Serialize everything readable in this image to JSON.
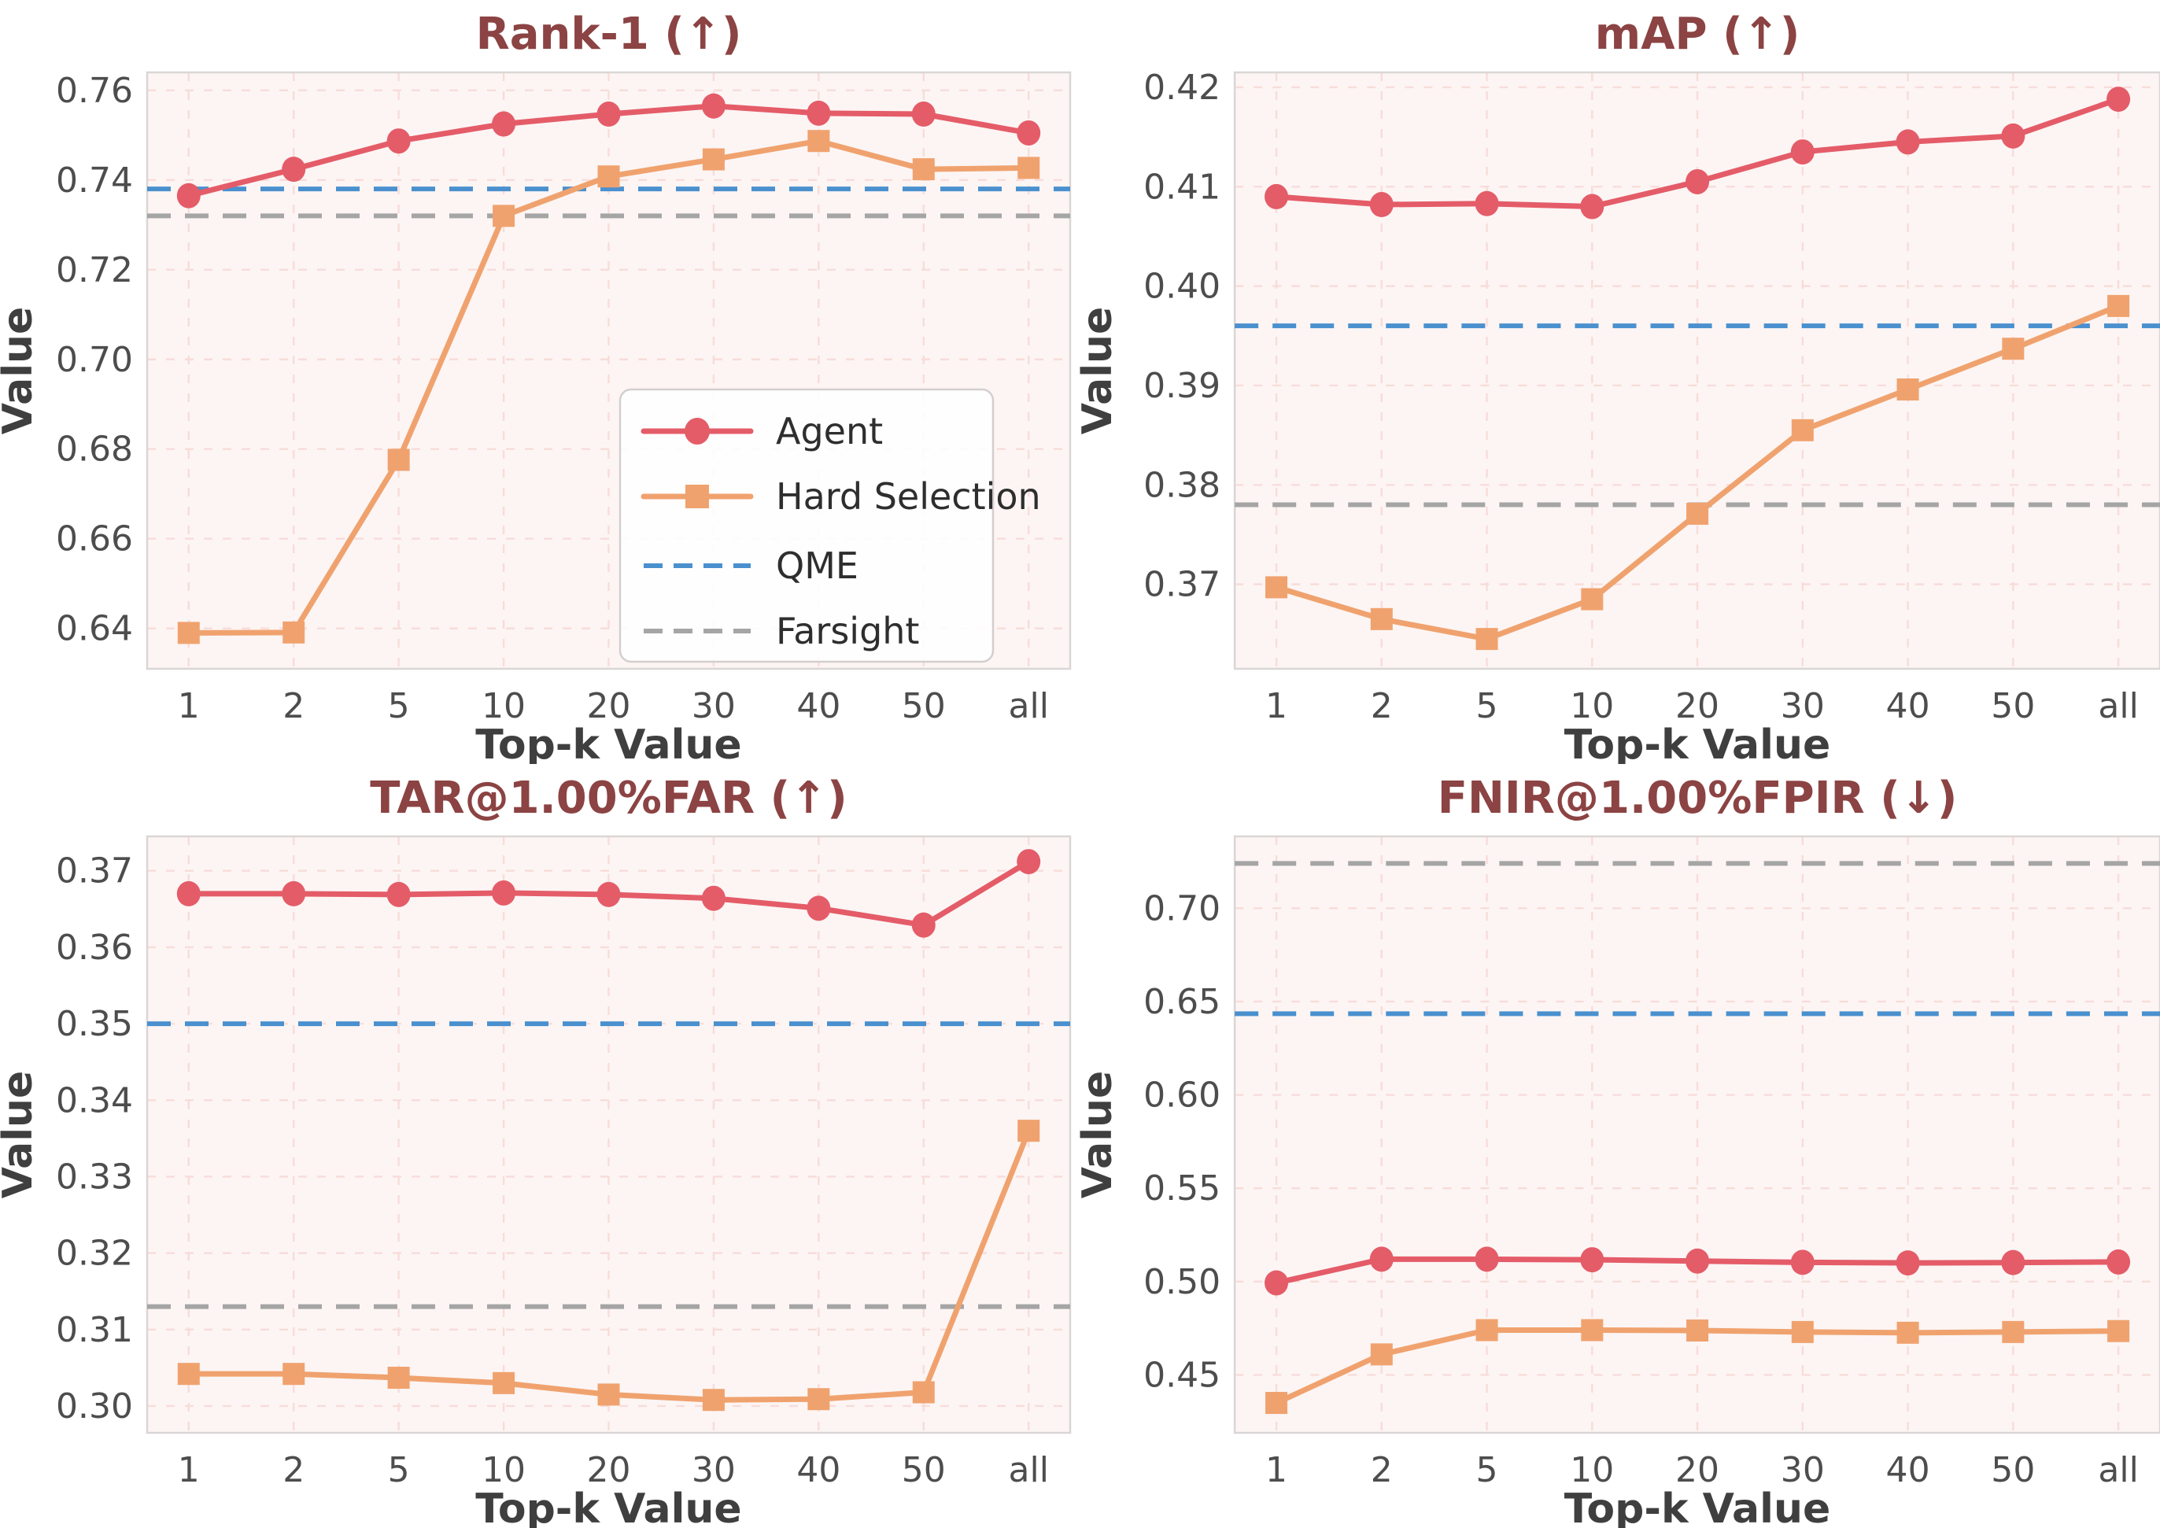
{
  "figure": {
    "xlabel": "Top-k Value",
    "ylabel": "Value",
    "categories": [
      "1",
      "2",
      "5",
      "10",
      "20",
      "30",
      "40",
      "50",
      "all"
    ],
    "legend": {
      "entries": [
        {
          "label": "Agent",
          "series": "agent",
          "swatch": "line-circle"
        },
        {
          "label": "Hard Selection",
          "series": "hard",
          "swatch": "line-square"
        },
        {
          "label": "QME",
          "series": "qme",
          "swatch": "dashed-line"
        },
        {
          "label": "Farsight",
          "series": "farsight",
          "swatch": "dashed-line"
        }
      ],
      "location": "inside-first-chart"
    },
    "colors": {
      "agent": "#E45C68",
      "hard": "#F0A26E",
      "qme": "#4A90CE",
      "farsight": "#A5A5A5",
      "title": "#8C4343",
      "tick_text": "#4D4D4D",
      "axis_label_text": "#3F3F3F",
      "legend_text": "#2E2E2E",
      "grid": "#F8DCD9",
      "plot_bg": "#FCF5F4",
      "spine": "#DBD6D6",
      "figure_bg": "#FFFFFF"
    }
  },
  "chart_data": [
    {
      "id": "rank1",
      "type": "line",
      "title": "Rank-1 (↑)",
      "better": "higher",
      "xlabel": "Top-k Value",
      "ylabel": "Value",
      "categories": [
        "1",
        "2",
        "5",
        "10",
        "20",
        "30",
        "40",
        "50",
        "all"
      ],
      "series": [
        {
          "name": "Agent",
          "key": "agent",
          "marker": "circle",
          "values": [
            0.7365,
            0.7424,
            0.7487,
            0.7525,
            0.7547,
            0.7565,
            0.7549,
            0.7547,
            0.7505
          ]
        },
        {
          "name": "Hard Selection",
          "key": "hard",
          "marker": "square",
          "values": [
            0.639,
            0.6391,
            0.6776,
            0.732,
            0.7408,
            0.7446,
            0.7487,
            0.7424,
            0.7427
          ]
        }
      ],
      "hlines": [
        {
          "name": "QME",
          "key": "qme",
          "value": 0.738
        },
        {
          "name": "Farsight",
          "key": "farsight",
          "value": 0.732
        }
      ],
      "yticks": [
        0.64,
        0.66,
        0.68,
        0.7,
        0.72,
        0.74,
        0.76
      ],
      "ytick_labels": [
        "0.64",
        "0.66",
        "0.68",
        "0.70",
        "0.72",
        "0.74",
        "0.76"
      ],
      "ylim": [
        0.631,
        0.764
      ],
      "grid": true,
      "legend_visible": true
    },
    {
      "id": "map",
      "type": "line",
      "title": "mAP (↑)",
      "better": "higher",
      "xlabel": "Top-k Value",
      "ylabel": "Value",
      "categories": [
        "1",
        "2",
        "5",
        "10",
        "20",
        "30",
        "40",
        "50",
        "all"
      ],
      "series": [
        {
          "name": "Agent",
          "key": "agent",
          "marker": "circle",
          "values": [
            0.409,
            0.4082,
            0.4083,
            0.408,
            0.4105,
            0.4135,
            0.4145,
            0.4151,
            0.4188
          ]
        },
        {
          "name": "Hard Selection",
          "key": "hard",
          "marker": "square",
          "values": [
            0.3697,
            0.3665,
            0.3645,
            0.3685,
            0.3771,
            0.3855,
            0.3896,
            0.3937,
            0.398
          ]
        }
      ],
      "hlines": [
        {
          "name": "QME",
          "key": "qme",
          "value": 0.396
        },
        {
          "name": "Farsight",
          "key": "farsight",
          "value": 0.378
        }
      ],
      "yticks": [
        0.37,
        0.38,
        0.39,
        0.4,
        0.41,
        0.42
      ],
      "ytick_labels": [
        "0.37",
        "0.38",
        "0.39",
        "0.40",
        "0.41",
        "0.42"
      ],
      "ylim": [
        0.3615,
        0.4215
      ],
      "grid": true,
      "legend_visible": false
    },
    {
      "id": "tar",
      "type": "line",
      "title": "TAR@1.00%FAR (↑)",
      "better": "higher",
      "xlabel": "Top-k Value",
      "ylabel": "Value",
      "categories": [
        "1",
        "2",
        "5",
        "10",
        "20",
        "30",
        "40",
        "50",
        "all"
      ],
      "series": [
        {
          "name": "Agent",
          "key": "agent",
          "marker": "circle",
          "values": [
            0.367,
            0.367,
            0.3669,
            0.3671,
            0.3669,
            0.3664,
            0.3651,
            0.3629,
            0.3712
          ]
        },
        {
          "name": "Hard Selection",
          "key": "hard",
          "marker": "square",
          "values": [
            0.3042,
            0.3042,
            0.3037,
            0.303,
            0.3015,
            0.3008,
            0.3009,
            0.3018,
            0.336
          ]
        }
      ],
      "hlines": [
        {
          "name": "QME",
          "key": "qme",
          "value": 0.35
        },
        {
          "name": "Farsight",
          "key": "farsight",
          "value": 0.313
        }
      ],
      "yticks": [
        0.3,
        0.31,
        0.32,
        0.33,
        0.34,
        0.35,
        0.36,
        0.37
      ],
      "ytick_labels": [
        "0.30",
        "0.31",
        "0.32",
        "0.33",
        "0.34",
        "0.35",
        "0.36",
        "0.37"
      ],
      "ylim": [
        0.2965,
        0.3745
      ],
      "grid": true,
      "legend_visible": false
    },
    {
      "id": "fnir",
      "type": "line",
      "title": "FNIR@1.00%FPIR (↓)",
      "better": "lower",
      "xlabel": "Top-k Value",
      "ylabel": "Value",
      "categories": [
        "1",
        "2",
        "5",
        "10",
        "20",
        "30",
        "40",
        "50",
        "all"
      ],
      "series": [
        {
          "name": "Agent",
          "key": "agent",
          "marker": "circle",
          "values": [
            0.4993,
            0.512,
            0.512,
            0.5117,
            0.511,
            0.5103,
            0.51,
            0.5102,
            0.5105
          ]
        },
        {
          "name": "Hard Selection",
          "key": "hard",
          "marker": "square",
          "values": [
            0.435,
            0.461,
            0.474,
            0.474,
            0.4738,
            0.473,
            0.4726,
            0.473,
            0.4735
          ]
        }
      ],
      "hlines": [
        {
          "name": "QME",
          "key": "qme",
          "value": 0.6435
        },
        {
          "name": "Farsight",
          "key": "farsight",
          "value": 0.724
        }
      ],
      "yticks": [
        0.45,
        0.5,
        0.55,
        0.6,
        0.65,
        0.7
      ],
      "ytick_labels": [
        "0.45",
        "0.50",
        "0.55",
        "0.60",
        "0.65",
        "0.70"
      ],
      "ylim": [
        0.419,
        0.7385
      ],
      "grid": true,
      "legend_visible": false
    }
  ]
}
